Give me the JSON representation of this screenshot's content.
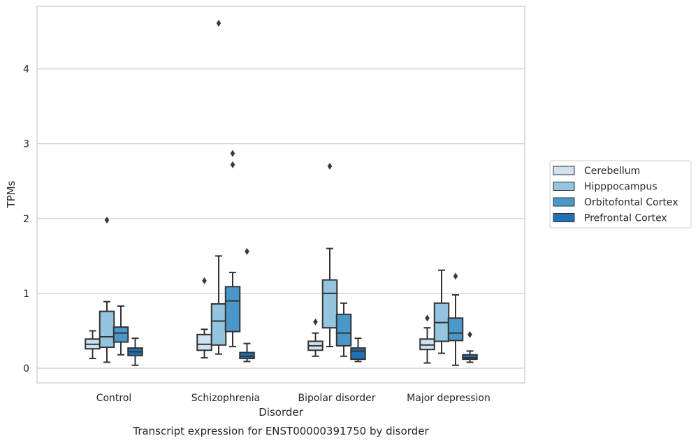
{
  "chart_data": {
    "type": "box",
    "title": "",
    "caption": "Transcript expression for ENST00000391750 by disorder",
    "xlabel": "Disorder",
    "ylabel": "TPMs",
    "ylim": [
      -0.19,
      4.8
    ],
    "yticks": [
      0,
      1,
      2,
      3,
      4
    ],
    "grid": "horizontal",
    "legend_position": "right",
    "categories": [
      "Control",
      "Schizophrenia",
      "Bipolar disorder",
      "Major depression"
    ],
    "series": [
      {
        "name": "Cerebellum",
        "color": "#d0e1f2",
        "boxes": [
          {
            "whislo": 0.13,
            "q1": 0.26,
            "med": 0.32,
            "q3": 0.39,
            "whishi": 0.5,
            "fliers": []
          },
          {
            "whislo": 0.14,
            "q1": 0.24,
            "med": 0.32,
            "q3": 0.45,
            "whishi": 0.52,
            "fliers": [
              1.17
            ]
          },
          {
            "whislo": 0.16,
            "q1": 0.24,
            "med": 0.3,
            "q3": 0.36,
            "whishi": 0.47,
            "fliers": [
              0.62
            ]
          },
          {
            "whislo": 0.07,
            "q1": 0.25,
            "med": 0.31,
            "q3": 0.39,
            "whishi": 0.54,
            "fliers": [
              0.67
            ]
          }
        ]
      },
      {
        "name": "Hipppocampus",
        "color": "#94c4df",
        "boxes": [
          {
            "whislo": 0.08,
            "q1": 0.28,
            "med": 0.42,
            "q3": 0.76,
            "whishi": 0.89,
            "fliers": [
              1.98
            ]
          },
          {
            "whislo": 0.19,
            "q1": 0.31,
            "med": 0.63,
            "q3": 0.86,
            "whishi": 1.5,
            "fliers": [
              4.61
            ]
          },
          {
            "whislo": 0.29,
            "q1": 0.54,
            "med": 1.0,
            "q3": 1.18,
            "whishi": 1.6,
            "fliers": [
              2.7
            ]
          },
          {
            "whislo": 0.2,
            "q1": 0.36,
            "med": 0.61,
            "q3": 0.87,
            "whishi": 1.31,
            "fliers": []
          }
        ]
      },
      {
        "name": "Orbitofontal Cortex",
        "color": "#4a98c9",
        "boxes": [
          {
            "whislo": 0.18,
            "q1": 0.35,
            "med": 0.47,
            "q3": 0.55,
            "whishi": 0.83,
            "fliers": []
          },
          {
            "whislo": 0.29,
            "q1": 0.49,
            "med": 0.9,
            "q3": 1.09,
            "whishi": 1.28,
            "fliers": [
              2.72,
              2.87
            ]
          },
          {
            "whislo": 0.16,
            "q1": 0.3,
            "med": 0.47,
            "q3": 0.72,
            "whishi": 0.87,
            "fliers": []
          },
          {
            "whislo": 0.04,
            "q1": 0.37,
            "med": 0.47,
            "q3": 0.67,
            "whishi": 0.98,
            "fliers": [
              1.23
            ]
          }
        ]
      },
      {
        "name": "Prefrontal Cortex",
        "color": "#2171b5",
        "boxes": [
          {
            "whislo": 0.04,
            "q1": 0.17,
            "med": 0.22,
            "q3": 0.27,
            "whishi": 0.4,
            "fliers": []
          },
          {
            "whislo": 0.09,
            "q1": 0.13,
            "med": 0.16,
            "q3": 0.21,
            "whishi": 0.33,
            "fliers": [
              1.56
            ]
          },
          {
            "whislo": 0.09,
            "q1": 0.12,
            "med": 0.23,
            "q3": 0.27,
            "whishi": 0.4,
            "fliers": []
          },
          {
            "whislo": 0.08,
            "q1": 0.12,
            "med": 0.14,
            "q3": 0.18,
            "whishi": 0.23,
            "fliers": [
              0.45
            ]
          }
        ]
      }
    ]
  }
}
